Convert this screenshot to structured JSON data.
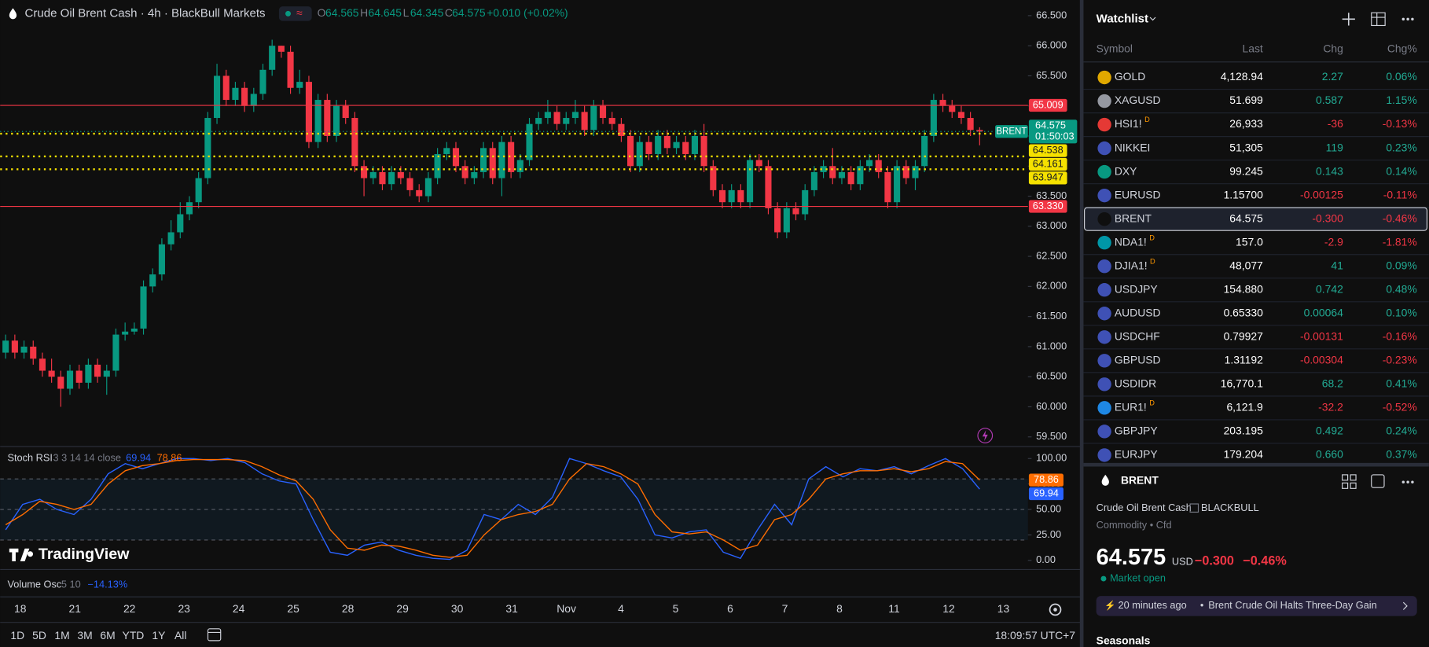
{
  "header": {
    "title": "Crude Oil Brent Cash · 4h · BlackBull Markets",
    "open_label": "O",
    "open": "64.565",
    "high_label": "H",
    "high": "64.645",
    "low_label": "L",
    "low": "64.345",
    "close_label": "C",
    "close": "64.575",
    "change": "+0.010 (+0.02%)"
  },
  "chart_data": [
    {
      "type": "candlestick",
      "up_color": "#089981",
      "down_color": "#f23645",
      "ylim": [
        59.34,
        66.76
      ],
      "yticks": [
        {
          "value": 59.5,
          "label": "59.500"
        },
        {
          "value": 60,
          "label": "60.000"
        },
        {
          "value": 60.5,
          "label": "60.500"
        },
        {
          "value": 61,
          "label": "61.000"
        },
        {
          "value": 61.5,
          "label": "61.500"
        },
        {
          "value": 62,
          "label": "62.000"
        },
        {
          "value": 62.5,
          "label": "62.500"
        },
        {
          "value": 63,
          "label": "63.000"
        },
        {
          "value": 63.5,
          "label": "63.500"
        },
        {
          "value": 64,
          "label": "64.000"
        },
        {
          "value": 64.5,
          "label": "64.500"
        },
        {
          "value": 65,
          "label": "65.000"
        },
        {
          "value": 65.5,
          "label": "65.500"
        },
        {
          "value": 66,
          "label": "66.000"
        },
        {
          "value": 66.5,
          "label": "66.500"
        }
      ],
      "x_labels": [
        "18",
        "21",
        "22",
        "23",
        "24",
        "25",
        "28",
        "29",
        "30",
        "31",
        "Nov",
        "4",
        "5",
        "6",
        "7",
        "8",
        "11",
        "12",
        "13"
      ],
      "levels": [
        {
          "value": 65.009,
          "label": "65.009",
          "color": "#f23645",
          "style": "solid"
        },
        {
          "value": 64.538,
          "label": "64.538",
          "color": "#f5e100",
          "style": "dotted"
        },
        {
          "value": 64.161,
          "label": "64.161",
          "color": "#f5e100",
          "style": "dotted"
        },
        {
          "value": 63.947,
          "label": "63.947",
          "color": "#f5e100",
          "style": "dotted"
        },
        {
          "value": 63.33,
          "label": "63.330",
          "color": "#f23645",
          "style": "solid"
        }
      ],
      "last_price": {
        "name": "BRENT",
        "value": 64.575,
        "countdown": "01:50:03",
        "color": "#089981"
      },
      "candles": [
        [
          60.9,
          61.2,
          60.8,
          61.1
        ],
        [
          61.1,
          61.2,
          60.8,
          60.9
        ],
        [
          60.9,
          61.1,
          60.8,
          61.0
        ],
        [
          61.0,
          61.1,
          60.7,
          60.8
        ],
        [
          60.8,
          60.9,
          60.5,
          60.6
        ],
        [
          60.6,
          60.8,
          60.4,
          60.5
        ],
        [
          60.5,
          60.6,
          60.0,
          60.3
        ],
        [
          60.3,
          60.7,
          60.2,
          60.6
        ],
        [
          60.6,
          60.7,
          60.3,
          60.4
        ],
        [
          60.4,
          60.8,
          60.3,
          60.7
        ],
        [
          60.7,
          60.8,
          60.4,
          60.5
        ],
        [
          60.5,
          60.7,
          60.2,
          60.6
        ],
        [
          60.6,
          61.3,
          60.5,
          61.2
        ],
        [
          61.2,
          61.4,
          61.1,
          61.25
        ],
        [
          61.25,
          61.4,
          61.2,
          61.3
        ],
        [
          61.3,
          62.1,
          61.2,
          62.0
        ],
        [
          62.0,
          62.3,
          61.9,
          62.2
        ],
        [
          62.2,
          62.8,
          62.1,
          62.7
        ],
        [
          62.7,
          63.1,
          62.6,
          62.9
        ],
        [
          62.9,
          63.4,
          62.8,
          63.2
        ],
        [
          63.2,
          63.5,
          63.1,
          63.4
        ],
        [
          63.4,
          63.9,
          63.3,
          63.8
        ],
        [
          63.8,
          64.9,
          63.7,
          64.8
        ],
        [
          64.8,
          65.7,
          64.7,
          65.5
        ],
        [
          65.5,
          65.6,
          65.0,
          65.1
        ],
        [
          65.1,
          65.4,
          65.0,
          65.3
        ],
        [
          65.3,
          65.4,
          64.9,
          65.0
        ],
        [
          65.0,
          65.3,
          64.9,
          65.2
        ],
        [
          65.2,
          65.7,
          65.1,
          65.6
        ],
        [
          65.6,
          66.1,
          65.5,
          66.0
        ],
        [
          66.0,
          66.0,
          65.8,
          65.9
        ],
        [
          65.9,
          66.0,
          65.2,
          65.3
        ],
        [
          65.3,
          65.6,
          65.2,
          65.4
        ],
        [
          65.4,
          65.5,
          64.3,
          64.4
        ],
        [
          64.4,
          65.2,
          64.3,
          65.1
        ],
        [
          65.1,
          65.2,
          64.4,
          64.5
        ],
        [
          64.5,
          65.1,
          64.4,
          65.0
        ],
        [
          65.0,
          65.1,
          64.7,
          64.8
        ],
        [
          64.8,
          64.9,
          63.9,
          64.0
        ],
        [
          64.0,
          64.1,
          63.5,
          63.8
        ],
        [
          63.8,
          64.0,
          63.7,
          63.9
        ],
        [
          63.9,
          64.0,
          63.6,
          63.7
        ],
        [
          63.7,
          64.0,
          63.6,
          63.9
        ],
        [
          63.9,
          64.0,
          63.7,
          63.8
        ],
        [
          63.8,
          63.9,
          63.5,
          63.6
        ],
        [
          63.6,
          63.7,
          63.4,
          63.5
        ],
        [
          63.5,
          63.9,
          63.4,
          63.8
        ],
        [
          63.8,
          64.3,
          63.7,
          64.2
        ],
        [
          64.2,
          64.4,
          64.1,
          64.3
        ],
        [
          64.3,
          64.4,
          63.9,
          64.0
        ],
        [
          64.0,
          64.1,
          63.7,
          63.8
        ],
        [
          63.8,
          64.0,
          63.7,
          63.9
        ],
        [
          63.9,
          64.4,
          63.8,
          64.3
        ],
        [
          64.3,
          64.4,
          63.7,
          63.8
        ],
        [
          63.8,
          64.5,
          63.5,
          64.4
        ],
        [
          64.4,
          64.5,
          63.8,
          63.9
        ],
        [
          63.9,
          64.2,
          63.8,
          64.1
        ],
        [
          64.1,
          64.8,
          64.0,
          64.7
        ],
        [
          64.7,
          64.9,
          64.6,
          64.8
        ],
        [
          64.8,
          65.1,
          64.7,
          64.9
        ],
        [
          64.9,
          65.0,
          64.6,
          64.7
        ],
        [
          64.7,
          64.9,
          64.6,
          64.8
        ],
        [
          64.8,
          65.1,
          64.7,
          64.9
        ],
        [
          64.9,
          65.0,
          64.5,
          64.6
        ],
        [
          64.6,
          65.1,
          64.5,
          65.0
        ],
        [
          65.0,
          65.1,
          64.7,
          64.8
        ],
        [
          64.8,
          64.9,
          64.6,
          64.7
        ],
        [
          64.7,
          64.8,
          64.4,
          64.5
        ],
        [
          64.5,
          64.6,
          63.9,
          64.0
        ],
        [
          64.0,
          64.5,
          63.9,
          64.4
        ],
        [
          64.4,
          64.5,
          64.1,
          64.2
        ],
        [
          64.2,
          64.6,
          64.1,
          64.5
        ],
        [
          64.5,
          64.6,
          64.2,
          64.3
        ],
        [
          64.3,
          64.5,
          64.2,
          64.4
        ],
        [
          64.4,
          64.5,
          64.1,
          64.2
        ],
        [
          64.2,
          64.6,
          64.1,
          64.5
        ],
        [
          64.5,
          64.7,
          63.9,
          64.0
        ],
        [
          64.0,
          64.1,
          63.5,
          63.6
        ],
        [
          63.6,
          63.7,
          63.3,
          63.4
        ],
        [
          63.4,
          63.7,
          63.3,
          63.6
        ],
        [
          63.6,
          63.7,
          63.3,
          63.4
        ],
        [
          63.4,
          64.2,
          63.3,
          64.1
        ],
        [
          64.1,
          64.2,
          63.9,
          64.0
        ],
        [
          64.0,
          64.1,
          63.2,
          63.3
        ],
        [
          63.3,
          63.4,
          62.8,
          62.9
        ],
        [
          62.9,
          63.4,
          62.8,
          63.3
        ],
        [
          63.3,
          63.4,
          63.1,
          63.2
        ],
        [
          63.2,
          63.7,
          63.1,
          63.6
        ],
        [
          63.6,
          64.0,
          63.5,
          63.9
        ],
        [
          63.9,
          64.1,
          63.8,
          64.0
        ],
        [
          64.0,
          64.3,
          63.7,
          63.8
        ],
        [
          63.8,
          64.0,
          63.7,
          63.9
        ],
        [
          63.9,
          64.0,
          63.6,
          63.7
        ],
        [
          63.7,
          64.1,
          63.6,
          64.0
        ],
        [
          64.0,
          64.2,
          63.9,
          64.1
        ],
        [
          64.1,
          64.2,
          63.8,
          63.9
        ],
        [
          63.9,
          64.0,
          63.3,
          63.4
        ],
        [
          63.4,
          64.1,
          63.3,
          64.0
        ],
        [
          64.0,
          64.1,
          63.7,
          63.8
        ],
        [
          63.8,
          64.1,
          63.6,
          64.0
        ],
        [
          64.0,
          64.6,
          63.9,
          64.5
        ],
        [
          64.5,
          65.2,
          64.4,
          65.1
        ],
        [
          65.1,
          65.2,
          64.9,
          65.0
        ],
        [
          65.0,
          65.1,
          64.8,
          64.9
        ],
        [
          64.9,
          65.0,
          64.7,
          64.8
        ],
        [
          64.8,
          64.9,
          64.5,
          64.6
        ],
        [
          64.6,
          64.645,
          64.345,
          64.575
        ]
      ]
    },
    {
      "type": "line",
      "title": "Stoch RSI",
      "params": "3 3 14 14 close",
      "ylim": [
        -9,
        110
      ],
      "yticks": [
        {
          "value": 100,
          "label": "100.00"
        },
        {
          "value": 75,
          "label": "75.00"
        },
        {
          "value": 50,
          "label": "50.00"
        },
        {
          "value": 25,
          "label": "25.00"
        },
        {
          "value": 0,
          "label": "0.00"
        }
      ],
      "bands": [
        20,
        50,
        80
      ],
      "series": [
        {
          "color": "#2962ff",
          "values": [
            30,
            55,
            60,
            50,
            45,
            60,
            85,
            95,
            90,
            95,
            100,
            100,
            98,
            100,
            96,
            85,
            78,
            75,
            40,
            8,
            5,
            15,
            18,
            10,
            5,
            2,
            1,
            10,
            45,
            40,
            55,
            45,
            62,
            100,
            95,
            88,
            82,
            60,
            25,
            22,
            28,
            30,
            8,
            2,
            30,
            55,
            35,
            80,
            92,
            82,
            90,
            88,
            92,
            85,
            93,
            100,
            90,
            69.94
          ]
        },
        {
          "color": "#ff6d00",
          "values": [
            35,
            45,
            58,
            55,
            50,
            55,
            75,
            88,
            93,
            95,
            98,
            99,
            99,
            99,
            98,
            92,
            84,
            78,
            60,
            30,
            12,
            10,
            15,
            14,
            10,
            5,
            3,
            5,
            25,
            40,
            45,
            48,
            55,
            80,
            95,
            92,
            85,
            75,
            45,
            28,
            26,
            28,
            20,
            10,
            15,
            40,
            45,
            60,
            80,
            85,
            88,
            88,
            90,
            87,
            90,
            97,
            95,
            78.86
          ]
        }
      ]
    },
    {
      "type": "indicator",
      "title": "Volume Osc",
      "params": "5 10",
      "value_text": "−14.13%"
    }
  ],
  "watermark": "TradingView",
  "timeframes": [
    "1D",
    "5D",
    "1M",
    "3M",
    "6M",
    "YTD",
    "1Y",
    "All"
  ],
  "clock": "18:09:57 UTC+7",
  "watchlist": {
    "title": "Watchlist",
    "columns": [
      "Symbol",
      "Last",
      "Chg",
      "Chg%"
    ],
    "selected": "BRENT",
    "rows": [
      {
        "symbol": "GOLD",
        "last": "4,128.94",
        "chg": "2.27",
        "chg_pct": "0.06%"
      },
      {
        "symbol": "XAGUSD",
        "last": "51.699",
        "chg": "0.587",
        "chg_pct": "1.15%"
      },
      {
        "symbol": "HSI1!",
        "badge": "D",
        "last": "26,933",
        "chg": "-36",
        "chg_pct": "-0.13%"
      },
      {
        "symbol": "NIKKEI",
        "last": "51,305",
        "chg": "119",
        "chg_pct": "0.23%"
      },
      {
        "symbol": "DXY",
        "last": "99.245",
        "chg": "0.143",
        "chg_pct": "0.14%"
      },
      {
        "symbol": "EURUSD",
        "last": "1.15700",
        "chg": "-0.00125",
        "chg_pct": "-0.11%"
      },
      {
        "symbol": "BRENT",
        "last": "64.575",
        "chg": "-0.300",
        "chg_pct": "-0.46%"
      },
      {
        "symbol": "NDA1!",
        "badge": "D",
        "last": "157.0",
        "chg": "-2.9",
        "chg_pct": "-1.81%"
      },
      {
        "symbol": "DJIA1!",
        "badge": "D",
        "last": "48,077",
        "chg": "41",
        "chg_pct": "0.09%"
      },
      {
        "symbol": "USDJPY",
        "last": "154.880",
        "chg": "0.742",
        "chg_pct": "0.48%"
      },
      {
        "symbol": "AUDUSD",
        "last": "0.65330",
        "chg": "0.00064",
        "chg_pct": "0.10%"
      },
      {
        "symbol": "USDCHF",
        "last": "0.79927",
        "chg": "-0.00131",
        "chg_pct": "-0.16%"
      },
      {
        "symbol": "GBPUSD",
        "last": "1.31192",
        "chg": "-0.00304",
        "chg_pct": "-0.23%"
      },
      {
        "symbol": "USDIDR",
        "last": "16,770.1",
        "chg": "68.2",
        "chg_pct": "0.41%"
      },
      {
        "symbol": "EUR1!",
        "badge": "D",
        "last": "6,121.9",
        "chg": "-32.2",
        "chg_pct": "-0.52%"
      },
      {
        "symbol": "GBPJPY",
        "last": "203.195",
        "chg": "0.492",
        "chg_pct": "0.24%"
      },
      {
        "symbol": "EURJPY",
        "last": "179.204",
        "chg": "0.660",
        "chg_pct": "0.37%"
      }
    ]
  },
  "details": {
    "name": "BRENT",
    "description": "Crude Oil Brent Cash",
    "exchange": "BLACKBULL",
    "category": "Commodity • Cfd",
    "price": "64.575",
    "currency": "USD",
    "change": "−0.300",
    "change_pct": "−0.46%",
    "status": "Market open",
    "news_time": "20 minutes ago",
    "news_headline": "Brent Crude Oil Halts Three-Day Gain",
    "section": "Seasonals"
  }
}
